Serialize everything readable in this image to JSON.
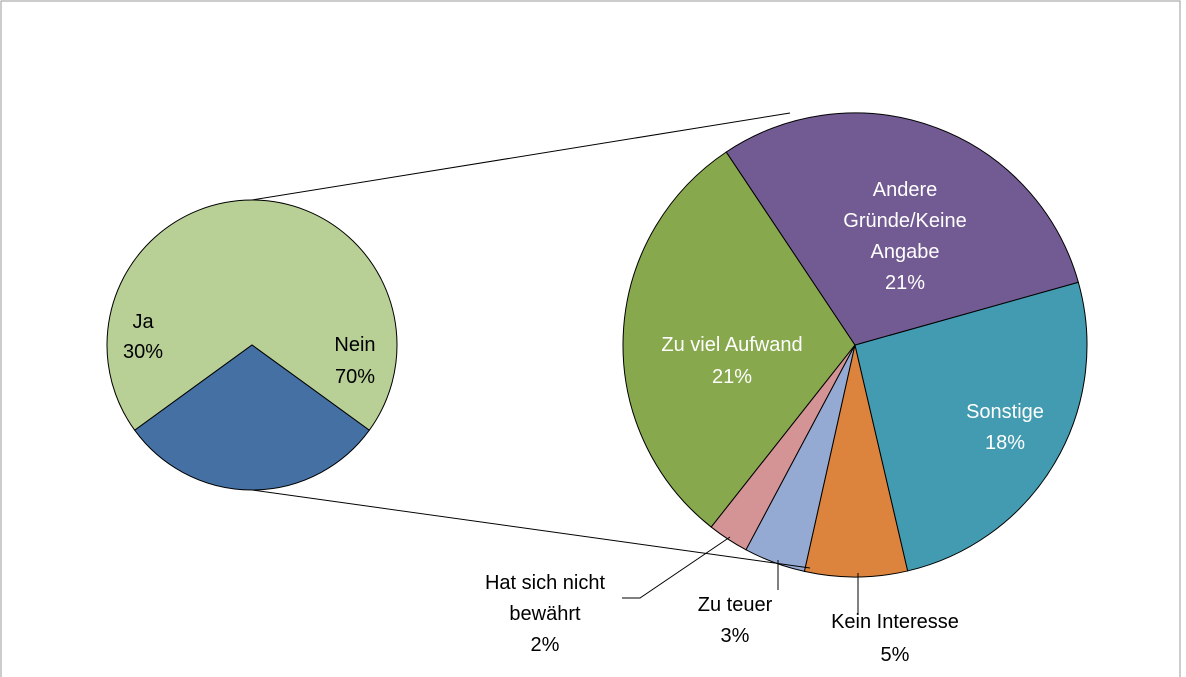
{
  "chart_data": [
    {
      "type": "pie",
      "categories": [
        "Ja",
        "Nein"
      ],
      "values": [
        30,
        70
      ],
      "value_labels": [
        "30%",
        "70%"
      ],
      "colors": [
        "#4470a4",
        "#b8cf96"
      ]
    },
    {
      "type": "pie",
      "categories": [
        "Andere Gründe/Keine Angabe",
        "Sonstige",
        "Kein Interesse",
        "Zu teuer",
        "Hat sich nicht bewährt",
        "Zu viel Aufwand"
      ],
      "values": [
        21,
        18,
        5,
        3,
        2,
        21
      ],
      "value_labels": [
        "21%",
        "18%",
        "5%",
        "3%",
        "2%",
        "21%"
      ],
      "colors": [
        "#725b92",
        "#429bb0",
        "#dc843d",
        "#95aad3",
        "#d49394",
        "#88a84e"
      ]
    }
  ]
}
